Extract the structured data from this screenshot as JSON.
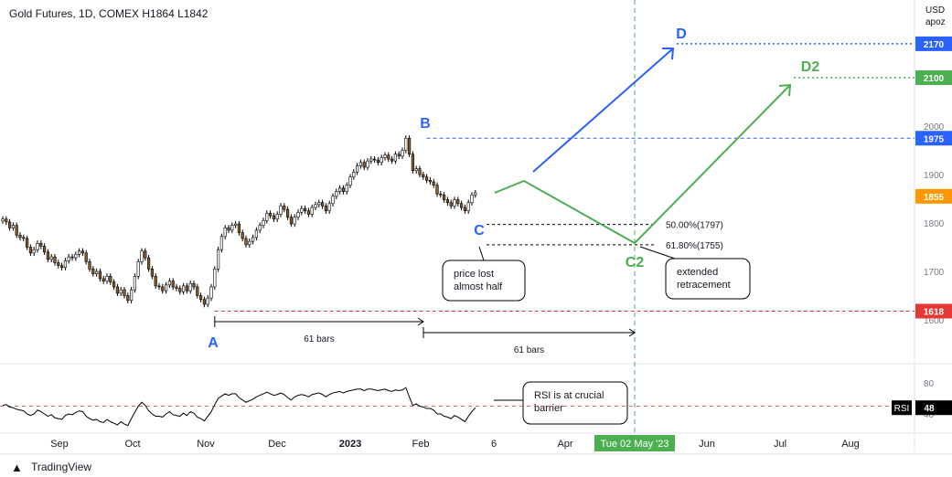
{
  "header": {
    "title": "Gold Futures, 1D, COMEX  H1864  L1842",
    "currency": "USD",
    "currency_sub": "apoz"
  },
  "footer": {
    "brand": "TradingView",
    "brand_icon": "tradingview-logo-icon"
  },
  "colors": {
    "bull": "#ffffff",
    "bear": "#8b5a2b",
    "wick": "#000000",
    "blue": "#2962ff",
    "green": "#4caf50",
    "red": "#e53935",
    "orange": "#ff9800",
    "dark": "#131722"
  },
  "chart_data": [
    {
      "type": "candlestick",
      "title": "Gold Futures, 1D, COMEX",
      "y_axis": {
        "label": "USD",
        "sub": "apoz",
        "ticks": [
          1600,
          1700,
          1800,
          1900,
          2000
        ],
        "range": [
          1570,
          2280
        ]
      },
      "x_axis": {
        "ticks": [
          "Sep",
          "Oct",
          "Nov",
          "Dec",
          "2023",
          "Feb",
          "6",
          "Apr",
          "Jun",
          "Jul",
          "Aug"
        ],
        "highlight": "Tue 02 May '23"
      },
      "closes": [
        1808,
        1802,
        1790,
        1795,
        1775,
        1770,
        1768,
        1750,
        1738,
        1745,
        1758,
        1752,
        1740,
        1725,
        1730,
        1718,
        1712,
        1708,
        1722,
        1730,
        1728,
        1735,
        1742,
        1738,
        1720,
        1705,
        1695,
        1700,
        1685,
        1680,
        1690,
        1678,
        1668,
        1655,
        1662,
        1650,
        1640,
        1662,
        1690,
        1720,
        1742,
        1728,
        1705,
        1690,
        1670,
        1668,
        1660,
        1672,
        1680,
        1668,
        1665,
        1658,
        1670,
        1660,
        1675,
        1668,
        1650,
        1642,
        1632,
        1645,
        1668,
        1705,
        1745,
        1772,
        1790,
        1785,
        1795,
        1798,
        1780,
        1768,
        1755,
        1762,
        1770,
        1785,
        1795,
        1805,
        1820,
        1815,
        1808,
        1818,
        1835,
        1828,
        1812,
        1798,
        1812,
        1822,
        1830,
        1825,
        1818,
        1832,
        1838,
        1842,
        1835,
        1825,
        1840,
        1855,
        1865,
        1872,
        1865,
        1878,
        1895,
        1905,
        1918,
        1925,
        1915,
        1928,
        1932,
        1930,
        1925,
        1935,
        1940,
        1932,
        1928,
        1942,
        1938,
        1950,
        1975,
        1942,
        1908,
        1912,
        1900,
        1895,
        1888,
        1885,
        1878,
        1860,
        1858,
        1848,
        1842,
        1835,
        1848,
        1840,
        1832,
        1825,
        1842,
        1858,
        1862
      ],
      "key_points": [
        {
          "label": "A",
          "price": 1618
        },
        {
          "label": "B",
          "price": 1975
        },
        {
          "label": "C",
          "price": 1810
        },
        {
          "label": "C2",
          "price": 1755
        },
        {
          "label": "D",
          "price": 2170
        },
        {
          "label": "D2",
          "price": 2100
        }
      ],
      "price_levels": [
        {
          "value": 2170,
          "label": "2170",
          "color": "blue"
        },
        {
          "value": 2100,
          "label": "2100",
          "color": "green"
        },
        {
          "value": 1975,
          "label": "1975",
          "color": "blue"
        },
        {
          "value": 1855,
          "label": "1855",
          "color": "orange"
        },
        {
          "value": 1618,
          "label": "1618",
          "color": "red"
        }
      ],
      "fib_levels": [
        {
          "value": 1797,
          "label": "50.00%(1797)"
        },
        {
          "value": 1755,
          "label": "61.80%(1755)"
        }
      ],
      "bar_spans": [
        {
          "label": "61 bars",
          "from": "A",
          "to": "B"
        },
        {
          "label": "61 bars",
          "from": "B",
          "to": "C2"
        }
      ],
      "annotations": [
        {
          "text_lines": [
            "price lost",
            "almost half"
          ]
        },
        {
          "text_lines": [
            "extended",
            "retracement"
          ]
        },
        {
          "text_lines": [
            "RSI is at crucial",
            "barrier"
          ]
        }
      ]
    },
    {
      "type": "line",
      "title": "RSI",
      "y_axis": {
        "ticks": [
          80,
          40
        ],
        "range": [
          20,
          100
        ],
        "reference": 50
      },
      "current_label": "RSI",
      "current_value": "48",
      "values": [
        51,
        52,
        49,
        48,
        46,
        45,
        44,
        40,
        38,
        40,
        45,
        43,
        40,
        37,
        39,
        35,
        34,
        33,
        38,
        40,
        39,
        42,
        44,
        43,
        37,
        34,
        32,
        33,
        30,
        29,
        33,
        30,
        28,
        26,
        30,
        27,
        25,
        34,
        42,
        50,
        55,
        51,
        44,
        40,
        37,
        37,
        36,
        40,
        43,
        39,
        38,
        37,
        41,
        38,
        43,
        41,
        36,
        34,
        31,
        37,
        43,
        52,
        60,
        63,
        66,
        64,
        66,
        66,
        61,
        58,
        55,
        57,
        59,
        62,
        64,
        66,
        68,
        66,
        64,
        65,
        67,
        65,
        61,
        58,
        62,
        64,
        65,
        64,
        62,
        65,
        66,
        67,
        65,
        62,
        65,
        67,
        68,
        69,
        67,
        69,
        70,
        71,
        72,
        72,
        70,
        72,
        72,
        71,
        70,
        71,
        72,
        70,
        69,
        71,
        70,
        71,
        74,
        62,
        51,
        53,
        50,
        49,
        47,
        47,
        45,
        40,
        40,
        37,
        36,
        34,
        38,
        36,
        33,
        30,
        37,
        43,
        48
      ]
    }
  ]
}
